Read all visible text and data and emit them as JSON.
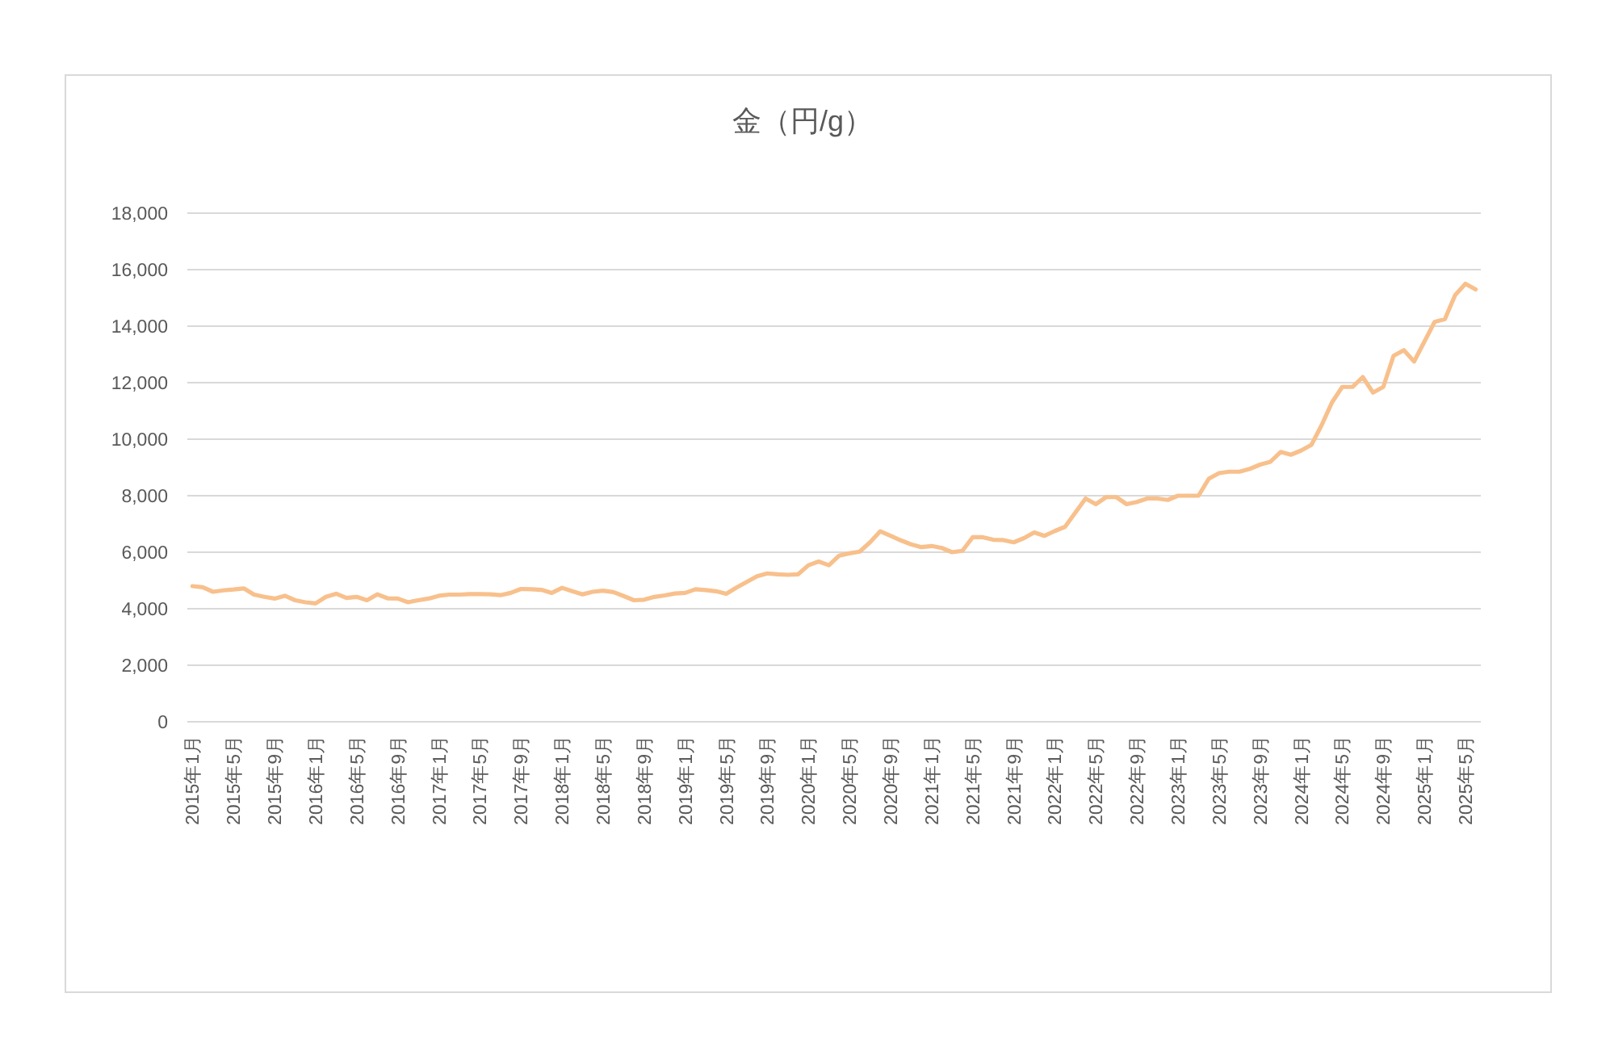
{
  "chart_data": {
    "type": "line",
    "title": "金（円/g）",
    "categories": [
      "2015年1月",
      null,
      null,
      null,
      "2015年5月",
      null,
      null,
      null,
      "2015年9月",
      null,
      null,
      null,
      "2016年1月",
      null,
      null,
      null,
      "2016年5月",
      null,
      null,
      null,
      "2016年9月",
      null,
      null,
      null,
      "2017年1月",
      null,
      null,
      null,
      "2017年5月",
      null,
      null,
      null,
      "2017年9月",
      null,
      null,
      null,
      "2018年1月",
      null,
      null,
      null,
      "2018年5月",
      null,
      null,
      null,
      "2018年9月",
      null,
      null,
      null,
      "2019年1月",
      null,
      null,
      null,
      "2019年5月",
      null,
      null,
      null,
      "2019年9月",
      null,
      null,
      null,
      "2020年1月",
      null,
      null,
      null,
      "2020年5月",
      null,
      null,
      null,
      "2020年9月",
      null,
      null,
      null,
      "2021年1月",
      null,
      null,
      null,
      "2021年5月",
      null,
      null,
      null,
      "2021年9月",
      null,
      null,
      null,
      "2022年1月",
      null,
      null,
      null,
      "2022年5月",
      null,
      null,
      null,
      "2022年9月",
      null,
      null,
      null,
      "2023年1月",
      null,
      null,
      null,
      "2023年5月",
      null,
      null,
      null,
      "2023年9月",
      null,
      null,
      null,
      "2024年1月",
      null,
      null,
      null,
      "2024年5月",
      null,
      null,
      null,
      "2024年9月",
      null,
      null,
      null,
      "2025年1月",
      null,
      null,
      null,
      "2025年5月",
      null
    ],
    "series": [
      {
        "color": "#f8c08c",
        "values": [
          4800,
          4760,
          4600,
          4650,
          4680,
          4720,
          4500,
          4420,
          4360,
          4460,
          4300,
          4230,
          4190,
          4420,
          4530,
          4380,
          4420,
          4300,
          4510,
          4370,
          4360,
          4230,
          4300,
          4360,
          4460,
          4500,
          4500,
          4520,
          4520,
          4510,
          4480,
          4560,
          4700,
          4690,
          4670,
          4560,
          4740,
          4620,
          4510,
          4600,
          4640,
          4590,
          4450,
          4300,
          4320,
          4420,
          4470,
          4540,
          4560,
          4690,
          4660,
          4620,
          4530,
          4750,
          4950,
          5150,
          5250,
          5220,
          5200,
          5220,
          5540,
          5670,
          5540,
          5880,
          5960,
          6020,
          6350,
          6740,
          6580,
          6420,
          6280,
          6180,
          6220,
          6150,
          6000,
          6050,
          6530,
          6530,
          6440,
          6430,
          6350,
          6500,
          6700,
          6580,
          6750,
          6900,
          7400,
          7900,
          7700,
          7950,
          7950,
          7700,
          7780,
          7900,
          7900,
          7850,
          8000,
          8000,
          8000,
          8600,
          8800,
          8850,
          8850,
          8950,
          9100,
          9200,
          9550,
          9450,
          9600,
          9800,
          10500,
          11300,
          11850,
          11850,
          12200,
          11650,
          11850,
          12950,
          13150,
          12750,
          13450,
          14150,
          14250,
          15100,
          15500,
          15300
        ]
      }
    ],
    "ylim": [
      0,
      18000
    ],
    "yticks": [
      0,
      {
        "value": 2000,
        "label": "2,000"
      },
      {
        "value": 4000,
        "label": "4,000"
      },
      {
        "value": 6000,
        "label": "6,000"
      },
      {
        "value": 8000,
        "label": "8,000"
      },
      {
        "value": 10000,
        "label": "10,000"
      },
      {
        "value": 12000,
        "label": "12,000"
      },
      {
        "value": 14000,
        "label": "14,000"
      },
      {
        "value": 16000,
        "label": "16,000"
      },
      {
        "value": 18000,
        "label": "18,000"
      }
    ],
    "grid": "y"
  }
}
